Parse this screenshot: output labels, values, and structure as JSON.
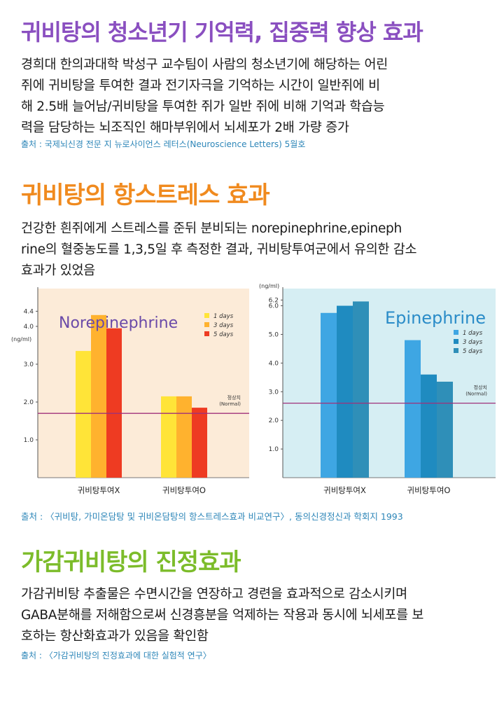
{
  "section1": {
    "title": "귀비탕의 청소년기 기억력, 집중력 향상 효과",
    "body": "경희대 한의과대학 박성구 교수팀이 사람의 청소년기에 해당하는 어린\n쥐에 귀비탕을 투여한 결과 전기자극을 기억하는 시간이 일반쥐에 비\n해 2.5배 늘어남/귀비탕을 투여한 쥐가 일반 쥐에 비해 기억과 학습능\n력을 담당하는 뇌조직인 해마부위에서 뇌세포가 2배 가량 증가",
    "source": "출처 : 국제뇌신경 전문 지  뉴로사이언스 레터스(Neuroscience Letters) 5월호"
  },
  "section2": {
    "title": "귀비탕의 항스트레스 효과",
    "body": "건강한 흰쥐에게 스트레스를 준뒤 분비되는 norepinephrine,epineph\nrine의 혈중농도를 1,3,5일 후 측정한 결과, 귀비탕투여군에서 유의한 감소\n효과가 있었음",
    "source": "출처 : 〈귀비탕, 가미온담탕 및 귀비온담탕의 항스트레스효과 비교연구〉, 동의신경정신과 학회지 1993"
  },
  "section3": {
    "title": "가감귀비탕의 진정효과",
    "body": "가감귀비탕 추출물은 수면시간을 연장하고 경련을 효과적으로 감소시키며\nGABA분해를 저해함으로써 신경흥분을 억제하는 작용과 동시에 뇌세포를 보\n호하는 항산화효과가 있음을 확인함",
    "source": "출처 : 〈가감귀비탕의 진정효과에 대한 실험적 연구〉"
  },
  "chart_data": [
    {
      "type": "bar",
      "title": "Norepinephrine",
      "ylabel": "(ng/ml)",
      "categories": [
        "귀비탕투여X",
        "귀비탕투여O"
      ],
      "series": [
        {
          "name": "1 days",
          "values": [
            3.35,
            2.15
          ]
        },
        {
          "name": "3 days",
          "values": [
            4.3,
            2.15
          ]
        },
        {
          "name": "5 days",
          "values": [
            3.95,
            1.85
          ]
        }
      ],
      "colors": [
        "#ffe438",
        "#ffb22e",
        "#ee3b22"
      ],
      "yticks": [
        "1.0",
        "2.0",
        "3.0",
        "4.0",
        "4.4"
      ],
      "ytick_values": [
        1.0,
        2.0,
        3.0,
        4.0,
        4.4
      ],
      "ylim": [
        0,
        5.0
      ],
      "normal_value": 1.7,
      "normal_label": "정상치",
      "normal_label_en": "(Normal)",
      "background": "#fcebd8",
      "normal_color": "#a0307a",
      "title_color": "#6a4aa8",
      "legend_position": "top-right"
    },
    {
      "type": "bar",
      "title": "Epinephrine",
      "ylabel": "(ng/ml)",
      "categories": [
        "귀비탕투여X",
        "귀비탕투여O"
      ],
      "series": [
        {
          "name": "1 days",
          "values": [
            5.75,
            4.8
          ]
        },
        {
          "name": "3 days",
          "values": [
            6.0,
            3.6
          ]
        },
        {
          "name": "5 days",
          "values": [
            6.15,
            3.35
          ]
        }
      ],
      "colors": [
        "#3ea6e3",
        "#1f8bc0",
        "#2f8fb8"
      ],
      "yticks": [
        "1.0",
        "2.0",
        "3.0",
        "4.0",
        "5.0",
        "6.0",
        "6.2"
      ],
      "ytick_values": [
        1.0,
        2.0,
        3.0,
        4.0,
        5.0,
        6.0,
        6.2
      ],
      "ylim": [
        0,
        6.6
      ],
      "normal_value": 2.6,
      "normal_label": "정상치",
      "normal_label_en": "(Normal)",
      "background": "#d6eef3",
      "normal_color": "#a0307a",
      "title_color": "#2a8cc8",
      "legend_position": "top-right"
    }
  ]
}
